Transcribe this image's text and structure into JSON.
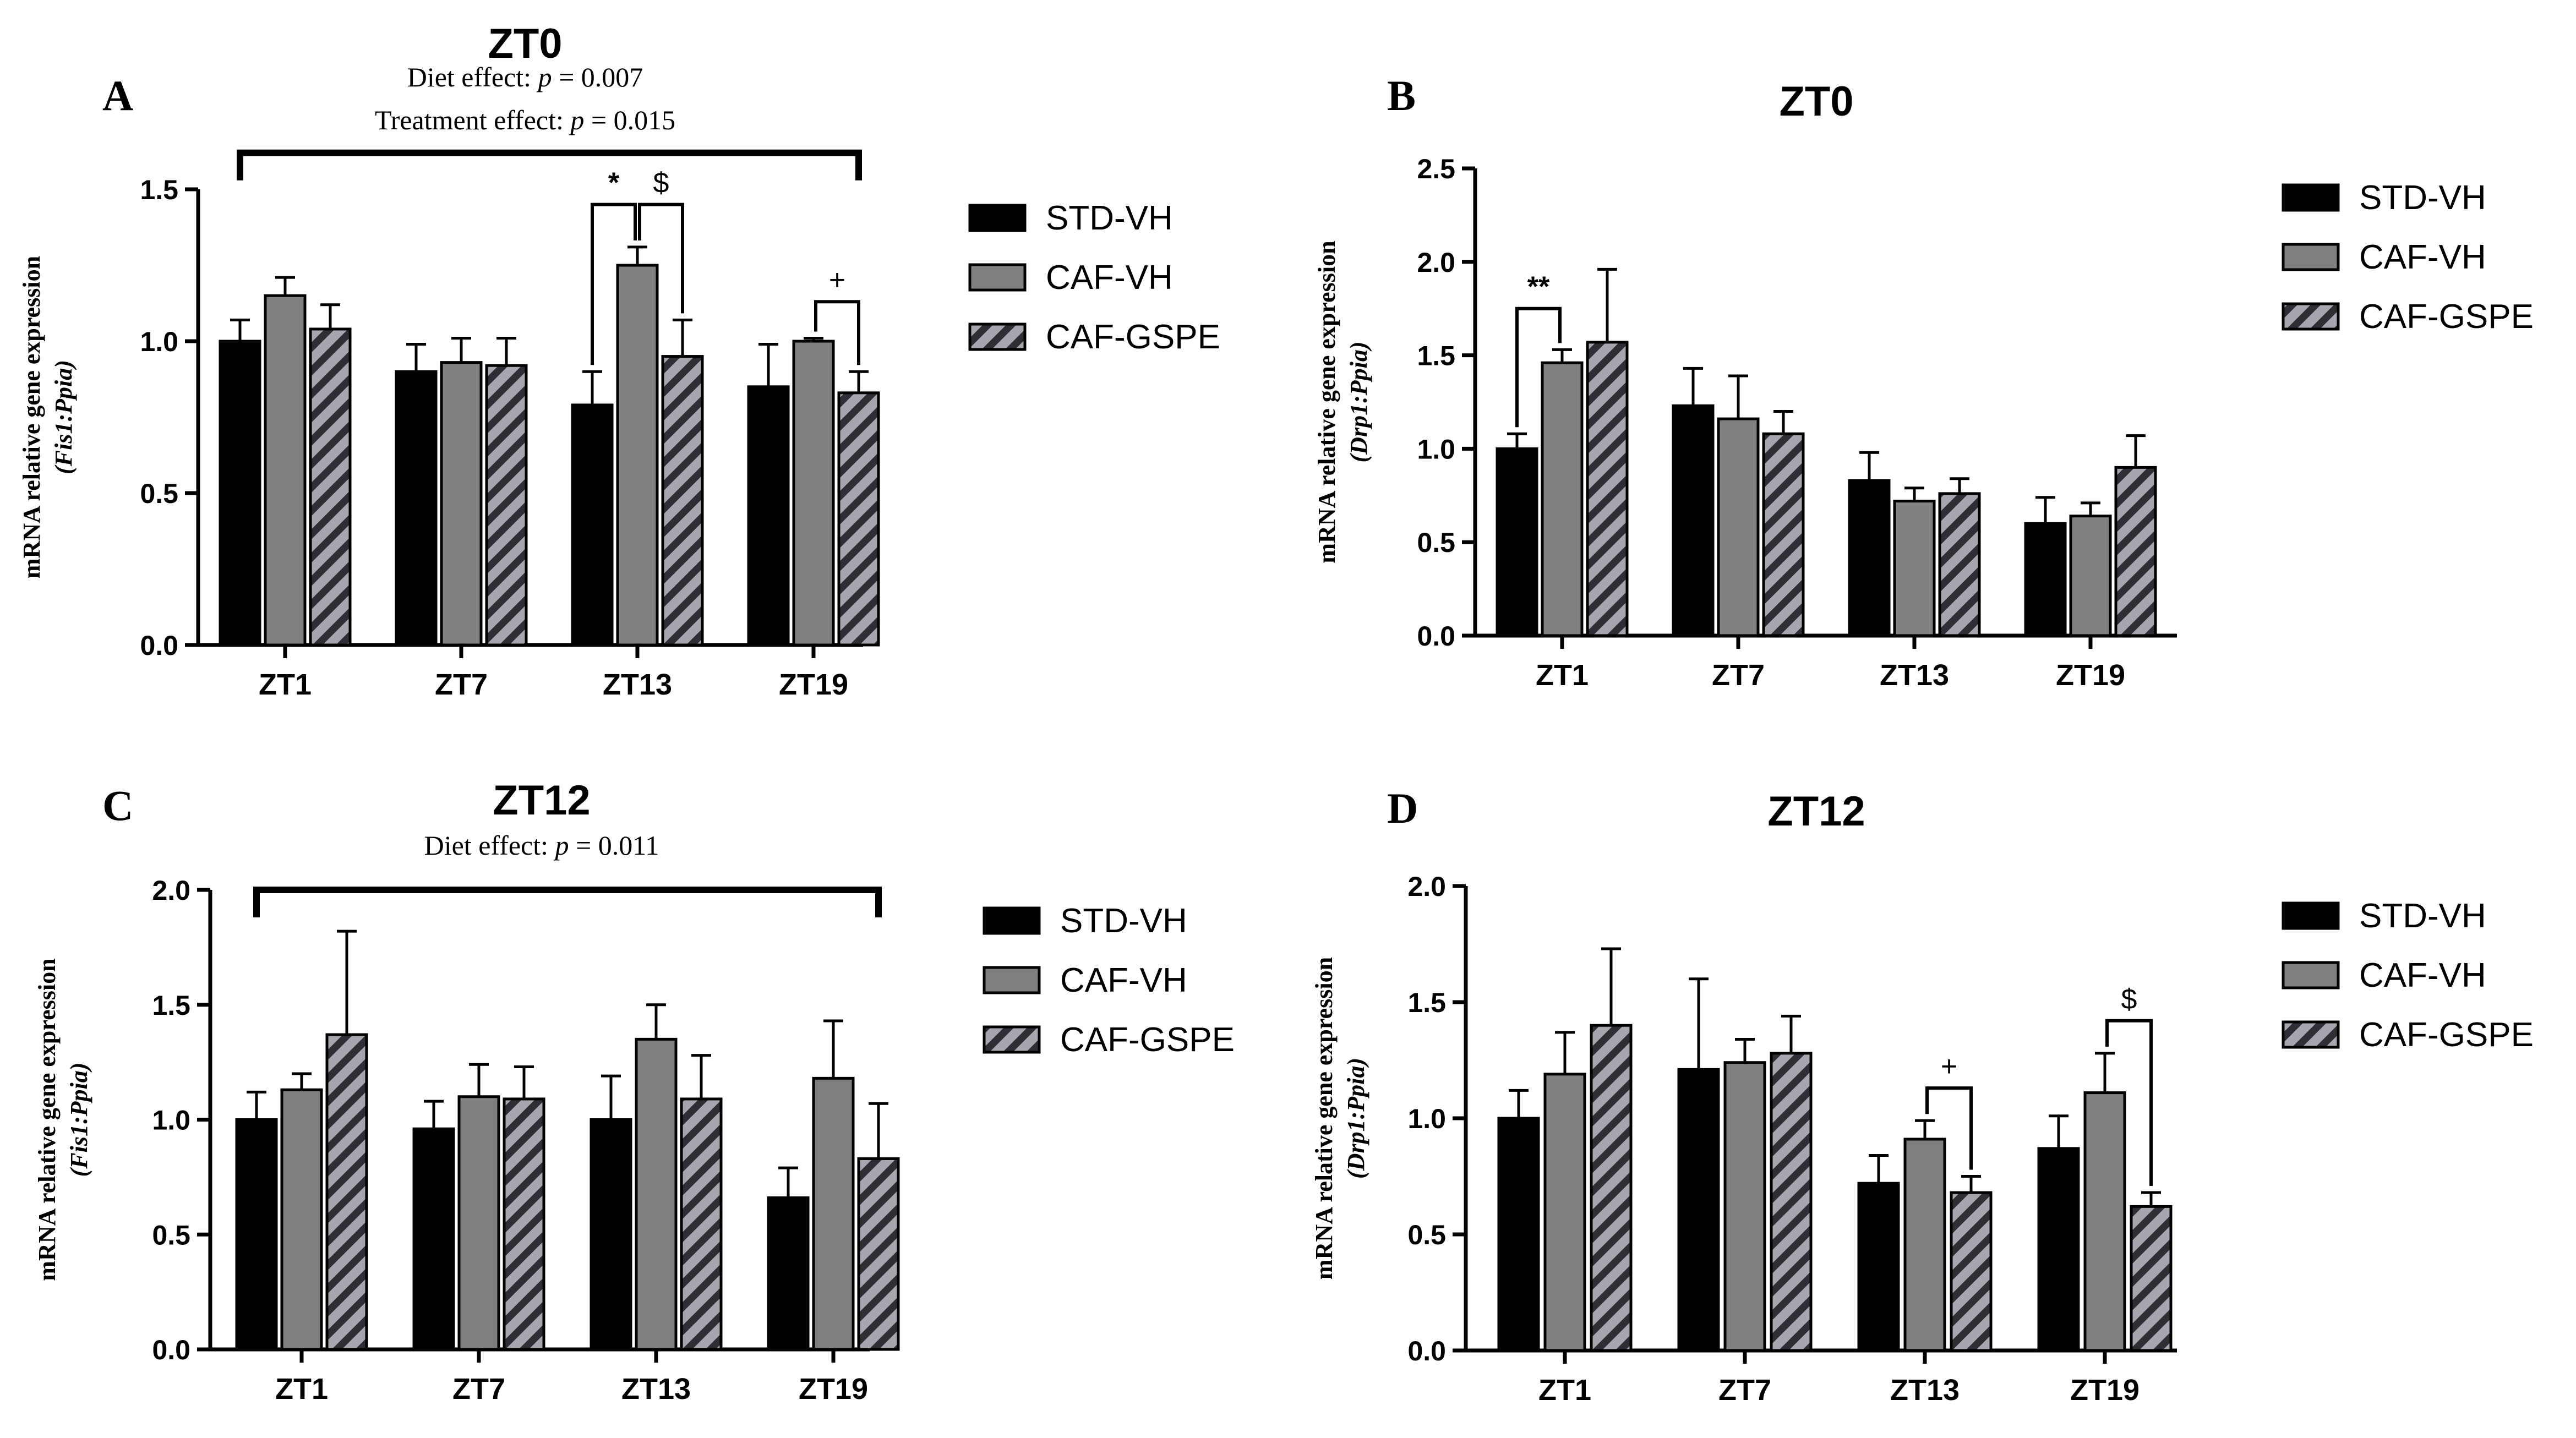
{
  "colors": {
    "STD-VH": "#000000",
    "CAF-VH": "#808080",
    "CAF-GSPE": "#a6a6ae",
    "axis": "#000000"
  },
  "legend_names": [
    "STD-VH",
    "CAF-VH",
    "CAF-GSPE"
  ],
  "chart_data": [
    {
      "panel": "A",
      "type": "bar",
      "title": "ZT0",
      "subtitle_lines": [
        {
          "prefix": "Diet effect: ",
          "italic": "p",
          "suffix": " = 0.007"
        },
        {
          "prefix": "Treatment effect: ",
          "italic": "p",
          "suffix": " = 0.015"
        }
      ],
      "ylabel_main": "mRNA relative gene expression",
      "ylabel_sub": "(Fis1:Ppia)",
      "ylim": [
        0,
        1.5
      ],
      "yticks": [
        "0.0",
        "0.5",
        "1.0",
        "1.5"
      ],
      "categories": [
        "ZT1",
        "ZT7",
        "ZT13",
        "ZT19"
      ],
      "series": [
        {
          "name": "STD-VH",
          "values": [
            1.0,
            0.9,
            0.79,
            0.85
          ],
          "errors": [
            0.07,
            0.09,
            0.11,
            0.14
          ]
        },
        {
          "name": "CAF-VH",
          "values": [
            1.15,
            0.93,
            1.25,
            1.0
          ],
          "errors": [
            0.06,
            0.08,
            0.06,
            0.01
          ]
        },
        {
          "name": "CAF-GSPE",
          "values": [
            1.04,
            0.92,
            0.95,
            0.83
          ],
          "errors": [
            0.08,
            0.09,
            0.12,
            0.07
          ]
        }
      ],
      "overall_bracket": {
        "from": 0,
        "to": 3,
        "y": 1.62
      },
      "annotations": [
        {
          "symbol": "*",
          "category": 2,
          "from": 0,
          "to": 1,
          "y": 1.45
        },
        {
          "symbol": "$",
          "category": 2,
          "from": 1,
          "to": 2,
          "y": 1.45
        },
        {
          "symbol": "+",
          "category": 3,
          "from": 1,
          "to": 2,
          "y": 1.13
        }
      ]
    },
    {
      "panel": "B",
      "type": "bar",
      "title": "ZT0",
      "subtitle_lines": [],
      "ylabel_main": "mRNA relative gene expression",
      "ylabel_sub": "(Drp1:Ppia)",
      "ylim": [
        0,
        2.5
      ],
      "yticks": [
        "0.0",
        "0.5",
        "1.0",
        "1.5",
        "2.0",
        "2.5"
      ],
      "categories": [
        "ZT1",
        "ZT7",
        "ZT13",
        "ZT19"
      ],
      "series": [
        {
          "name": "STD-VH",
          "values": [
            1.0,
            1.23,
            0.83,
            0.6
          ],
          "errors": [
            0.08,
            0.2,
            0.15,
            0.14
          ]
        },
        {
          "name": "CAF-VH",
          "values": [
            1.46,
            1.16,
            0.72,
            0.64
          ],
          "errors": [
            0.07,
            0.23,
            0.07,
            0.07
          ]
        },
        {
          "name": "CAF-GSPE",
          "values": [
            1.57,
            1.08,
            0.76,
            0.9
          ],
          "errors": [
            0.39,
            0.12,
            0.08,
            0.17
          ]
        }
      ],
      "overall_bracket": null,
      "annotations": [
        {
          "symbol": "**",
          "category": 0,
          "from": 0,
          "to": 1,
          "y": 1.75
        }
      ]
    },
    {
      "panel": "C",
      "type": "bar",
      "title": "ZT12",
      "subtitle_lines": [
        {
          "prefix": "Diet effect: ",
          "italic": "p",
          "suffix": " = 0.011"
        }
      ],
      "ylabel_main": "mRNA relative gene expression",
      "ylabel_sub": "(Fis1:Ppia)",
      "ylim": [
        0,
        2.0
      ],
      "yticks": [
        "0.0",
        "0.5",
        "1.0",
        "1.5",
        "2.0"
      ],
      "categories": [
        "ZT1",
        "ZT7",
        "ZT13",
        "ZT19"
      ],
      "series": [
        {
          "name": "STD-VH",
          "values": [
            1.0,
            0.96,
            1.0,
            0.66
          ],
          "errors": [
            0.12,
            0.12,
            0.19,
            0.13
          ]
        },
        {
          "name": "CAF-VH",
          "values": [
            1.13,
            1.1,
            1.35,
            1.18
          ],
          "errors": [
            0.07,
            0.14,
            0.15,
            0.25
          ]
        },
        {
          "name": "CAF-GSPE",
          "values": [
            1.37,
            1.09,
            1.09,
            0.83
          ],
          "errors": [
            0.45,
            0.14,
            0.19,
            0.24
          ]
        }
      ],
      "overall_bracket": {
        "from": 0,
        "to": 3,
        "y": 2.0
      },
      "annotations": []
    },
    {
      "panel": "D",
      "type": "bar",
      "title": "ZT12",
      "subtitle_lines": [],
      "ylabel_main": "mRNA relative gene expression",
      "ylabel_sub": "(Drp1:Ppia)",
      "ylim": [
        0,
        2.0
      ],
      "yticks": [
        "0.0",
        "0.5",
        "1.0",
        "1.5",
        "2.0"
      ],
      "categories": [
        "ZT1",
        "ZT7",
        "ZT13",
        "ZT19"
      ],
      "series": [
        {
          "name": "STD-VH",
          "values": [
            1.0,
            1.21,
            0.72,
            0.87
          ],
          "errors": [
            0.12,
            0.39,
            0.12,
            0.14
          ]
        },
        {
          "name": "CAF-VH",
          "values": [
            1.19,
            1.24,
            0.91,
            1.11
          ],
          "errors": [
            0.18,
            0.1,
            0.08,
            0.17
          ]
        },
        {
          "name": "CAF-GSPE",
          "values": [
            1.4,
            1.28,
            0.68,
            0.62
          ],
          "errors": [
            0.33,
            0.16,
            0.07,
            0.06
          ]
        }
      ],
      "overall_bracket": null,
      "annotations": [
        {
          "symbol": "+",
          "category": 2,
          "from": 1,
          "to": 2,
          "y": 1.13
        },
        {
          "symbol": "$",
          "category": 3,
          "from": 1,
          "to": 2,
          "y": 1.42
        }
      ]
    }
  ]
}
